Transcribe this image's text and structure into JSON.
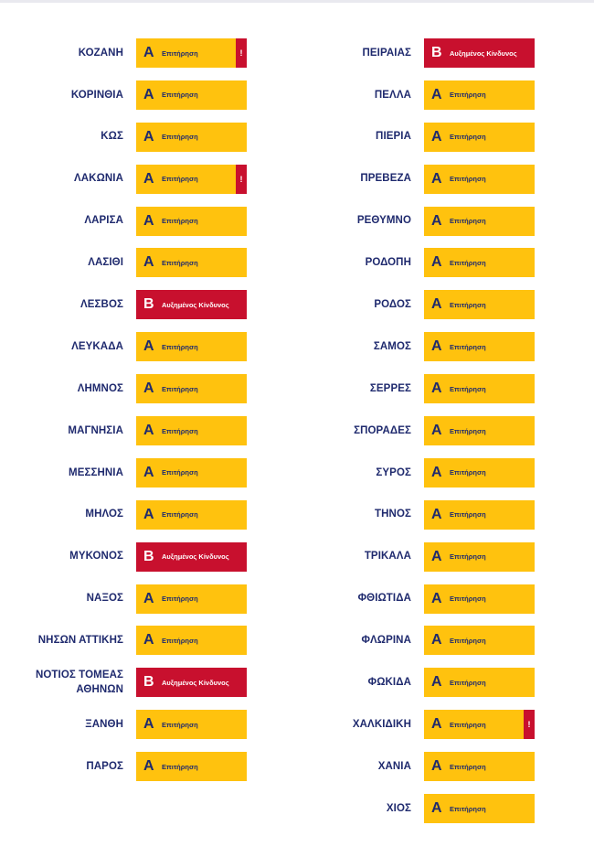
{
  "levels": {
    "A": {
      "letter": "Α",
      "label": "Επιτήρηση",
      "color": "#ffc20e"
    },
    "B": {
      "letter": "Β",
      "label": "Αυξημένος Κίνδυνος",
      "color": "#c8102e"
    }
  },
  "alert_symbol": "!",
  "left_column": [
    {
      "name": "ΚΟΖΑΝΗ",
      "level": "A",
      "alert": true
    },
    {
      "name": "ΚΟΡΙΝΘΙΑ",
      "level": "A",
      "alert": false
    },
    {
      "name": "ΚΩΣ",
      "level": "A",
      "alert": false
    },
    {
      "name": "ΛΑΚΩΝΙΑ",
      "level": "A",
      "alert": true
    },
    {
      "name": "ΛΑΡΙΣΑ",
      "level": "A",
      "alert": false
    },
    {
      "name": "ΛΑΣΙΘΙ",
      "level": "A",
      "alert": false
    },
    {
      "name": "ΛΕΣΒΟΣ",
      "level": "B",
      "alert": false
    },
    {
      "name": "ΛΕΥΚΑΔΑ",
      "level": "A",
      "alert": false
    },
    {
      "name": "ΛΗΜΝΟΣ",
      "level": "A",
      "alert": false
    },
    {
      "name": "ΜΑΓΝΗΣΙΑ",
      "level": "A",
      "alert": false
    },
    {
      "name": "ΜΕΣΣΗΝΙΑ",
      "level": "A",
      "alert": false
    },
    {
      "name": "ΜΗΛΟΣ",
      "level": "A",
      "alert": false
    },
    {
      "name": "ΜΥΚΟΝΟΣ",
      "level": "B",
      "alert": false
    },
    {
      "name": "ΝΑΞΟΣ",
      "level": "A",
      "alert": false
    },
    {
      "name": "ΝΗΣΩΝ ΑΤΤΙΚΗΣ",
      "level": "A",
      "alert": false
    },
    {
      "name": "ΝΟΤΙΟΣ ΤΟΜΕΑΣ ΑΘΗΝΩΝ",
      "level": "B",
      "alert": false
    },
    {
      "name": "ΞΑΝΘΗ",
      "level": "A",
      "alert": false
    },
    {
      "name": "ΠΑΡΟΣ",
      "level": "A",
      "alert": false
    }
  ],
  "right_column": [
    {
      "name": "ΠΕΙΡΑΙΑΣ",
      "level": "B",
      "alert": false
    },
    {
      "name": "ΠΕΛΛΑ",
      "level": "A",
      "alert": false
    },
    {
      "name": "ΠΙΕΡΙΑ",
      "level": "A",
      "alert": false
    },
    {
      "name": "ΠΡΕΒΕΖΑ",
      "level": "A",
      "alert": false
    },
    {
      "name": "ΡΕΘΥΜΝΟ",
      "level": "A",
      "alert": false
    },
    {
      "name": "ΡΟΔΟΠΗ",
      "level": "A",
      "alert": false
    },
    {
      "name": "ΡΟΔΟΣ",
      "level": "A",
      "alert": false
    },
    {
      "name": "ΣΑΜΟΣ",
      "level": "A",
      "alert": false
    },
    {
      "name": "ΣΕΡΡΕΣ",
      "level": "A",
      "alert": false
    },
    {
      "name": "ΣΠΟΡΑΔΕΣ",
      "level": "A",
      "alert": false
    },
    {
      "name": "ΣΥΡΟΣ",
      "level": "A",
      "alert": false
    },
    {
      "name": "ΤΗΝΟΣ",
      "level": "A",
      "alert": false
    },
    {
      "name": "ΤΡΙΚΑΛΑ",
      "level": "A",
      "alert": false
    },
    {
      "name": "ΦΘΙΩΤΙΔΑ",
      "level": "A",
      "alert": false
    },
    {
      "name": "ΦΛΩΡΙΝΑ",
      "level": "A",
      "alert": false
    },
    {
      "name": "ΦΩΚΙΔΑ",
      "level": "A",
      "alert": false
    },
    {
      "name": "ΧΑΛΚΙΔΙΚΗ",
      "level": "A",
      "alert": true
    },
    {
      "name": "ΧΑΝΙΑ",
      "level": "A",
      "alert": false
    },
    {
      "name": "ΧΙΟΣ",
      "level": "A",
      "alert": false
    }
  ]
}
